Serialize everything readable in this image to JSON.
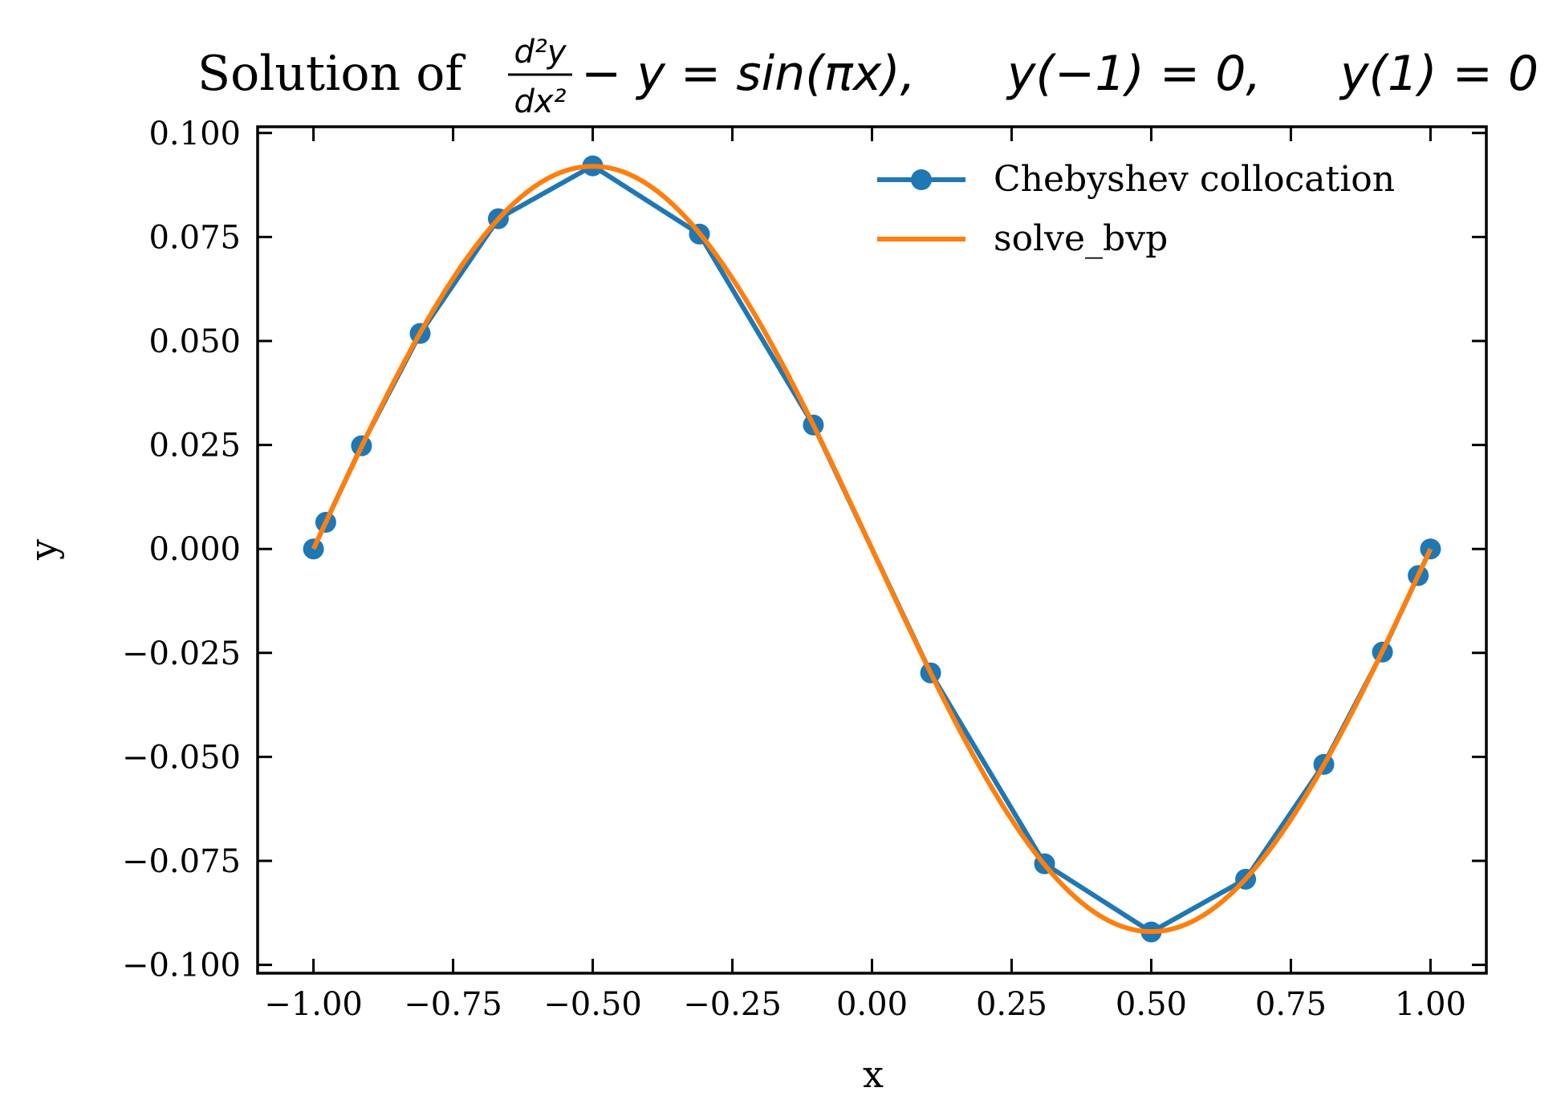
{
  "chart_data": {
    "type": "line",
    "title": {
      "prefix": "Solution of",
      "frac_num": "d²y",
      "frac_den": "dx²",
      "equation": "− y = sin(πx),",
      "bc_left": "y(−1) = 0,",
      "bc_right": "y(1) = 0"
    },
    "xlabel": "x",
    "ylabel": "y",
    "xlim": [
      -1.1,
      1.1
    ],
    "ylim": [
      -0.102,
      0.1015
    ],
    "xticks": [
      -1.0,
      -0.75,
      -0.5,
      -0.25,
      0.0,
      0.25,
      0.5,
      0.75,
      1.0
    ],
    "xtick_labels": [
      "−1.00",
      "−0.75",
      "−0.50",
      "−0.25",
      "0.00",
      "0.25",
      "0.50",
      "0.75",
      "1.00"
    ],
    "yticks": [
      0.1,
      0.075,
      0.05,
      0.025,
      0.0,
      -0.025,
      -0.05,
      -0.075,
      -0.1
    ],
    "ytick_labels": [
      "0.100",
      "0.075",
      "0.050",
      "0.025",
      "0.000",
      "−0.025",
      "−0.050",
      "−0.075",
      "−0.100"
    ],
    "grid": false,
    "legend_position": "top-right",
    "series": [
      {
        "name": "Chebyshev collocation",
        "color": "#1f77b4",
        "marker": "circle",
        "x": [
          -1.0,
          -0.978,
          -0.914,
          -0.809,
          -0.669,
          -0.5,
          -0.309,
          -0.105,
          0.105,
          0.309,
          0.5,
          0.669,
          0.809,
          0.914,
          0.978,
          1.0
        ],
        "y": [
          0.0,
          0.0064,
          0.0248,
          0.0518,
          0.0794,
          0.0921,
          0.0757,
          0.0298,
          -0.0298,
          -0.0757,
          -0.0921,
          -0.0794,
          -0.0518,
          -0.0248,
          -0.0064,
          0.0
        ]
      },
      {
        "name": "solve_bvp",
        "color": "#ff7f0e",
        "marker": "none",
        "function": "-sin(pi*x)/(pi^2+1)",
        "x_range": [
          -1.0,
          1.0
        ]
      }
    ]
  }
}
